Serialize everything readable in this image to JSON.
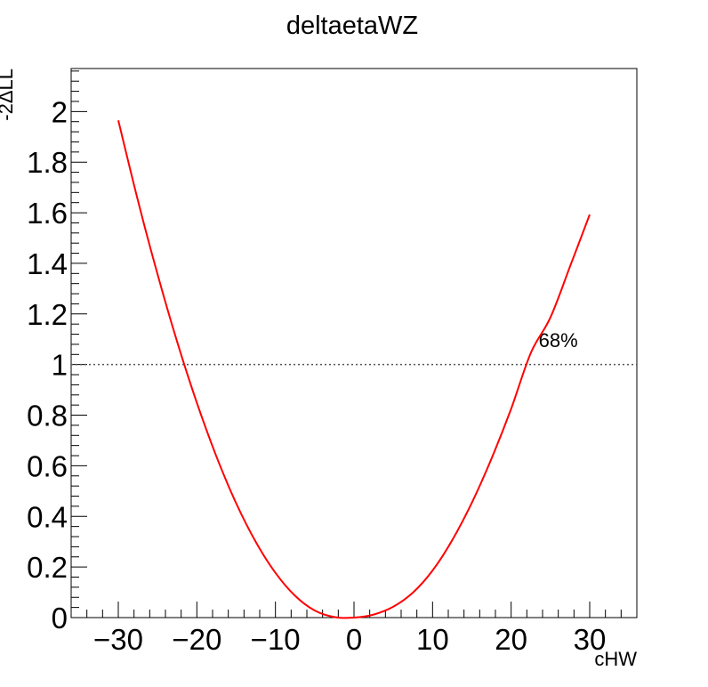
{
  "chart_data": {
    "type": "line",
    "title": "deltaetaWZ",
    "xlabel": "cHW",
    "ylabel": "-2ΔLL",
    "xlim": [
      -36,
      36
    ],
    "ylim": [
      0,
      2.17
    ],
    "xticks": [
      -30,
      -20,
      -10,
      0,
      10,
      20,
      30
    ],
    "xtick_labels": [
      "−30",
      "−20",
      "−10",
      "0",
      "10",
      "20",
      "30"
    ],
    "yticks": [
      0,
      0.2,
      0.4,
      0.6,
      0.8,
      1,
      1.2,
      1.4,
      1.6,
      1.8,
      2
    ],
    "ytick_labels": [
      "0",
      "0.2",
      "0.4",
      "0.6",
      "0.8",
      "1",
      "1.2",
      "1.4",
      "1.6",
      "1.8",
      "2"
    ],
    "grid": false,
    "series": [
      {
        "color": "#ff0000",
        "x": [
          -30,
          -27.5,
          -25,
          -22.5,
          -20,
          -17.5,
          -15,
          -12.5,
          -10,
          -7.5,
          -5,
          -2.5,
          0,
          2.5,
          5,
          7.5,
          10,
          12.5,
          15,
          17.5,
          20,
          22.5,
          25,
          27.5,
          30
        ],
        "y": [
          1.965,
          1.648,
          1.356,
          1.089,
          0.849,
          0.636,
          0.452,
          0.299,
          0.177,
          0.086,
          0.028,
          0.002,
          0.0,
          0.012,
          0.043,
          0.099,
          0.186,
          0.306,
          0.454,
          0.628,
          0.825,
          1.046,
          1.186,
          1.388,
          1.593
        ]
      }
    ],
    "reference_line": {
      "y": 1,
      "style": "dotted",
      "color": "#555555"
    },
    "annotations": [
      {
        "text": "68%",
        "x": 26,
        "y": 1.07
      }
    ]
  }
}
